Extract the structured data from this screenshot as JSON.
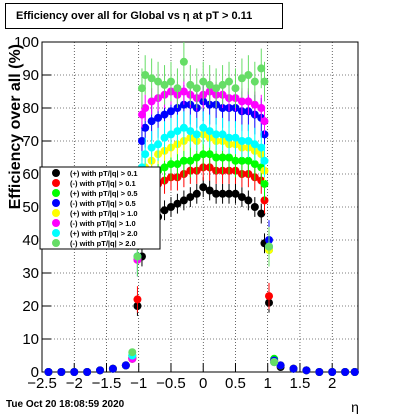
{
  "title": "Efficiency over all for Global vs   η at pT > 0.11",
  "timestamp": "Tue Oct 20 18:08:59 2020",
  "chart_data": {
    "type": "scatter",
    "title": "Efficiency over all for Global vs   η at pT > 0.11",
    "xlabel": "η",
    "ylabel": "Efficiency over all (%)",
    "xlim": [
      -2.5,
      2.4
    ],
    "ylim": [
      0,
      100
    ],
    "x_ticks": [
      -2.5,
      -2,
      -1.5,
      -1,
      -0.5,
      0,
      0.5,
      1,
      1.5,
      2
    ],
    "x_tick_labels": [
      "−2.5",
      "−2",
      "−1.5",
      "−1",
      "−0.5",
      "0",
      "0.5",
      "1",
      "1.5",
      "2"
    ],
    "y_ticks": [
      0,
      10,
      20,
      30,
      40,
      50,
      60,
      70,
      80,
      90,
      100
    ],
    "y_tick_labels": [
      "0",
      "10",
      "20",
      "30",
      "40",
      "50",
      "60",
      "70",
      "80",
      "90",
      "100"
    ],
    "grid": true,
    "legend_position": "middle-left",
    "series": [
      {
        "name": "(+) with pT/|q| > 0.1",
        "color": "#000000",
        "points": [
          [
            -2.4,
            0
          ],
          [
            -2.2,
            0
          ],
          [
            -2.0,
            0
          ],
          [
            -1.8,
            0
          ],
          [
            -1.6,
            0.5
          ],
          [
            -1.4,
            1
          ],
          [
            -1.2,
            2
          ],
          [
            -1.1,
            4
          ],
          [
            -1.02,
            20
          ],
          [
            -0.95,
            35
          ],
          [
            -0.9,
            42
          ],
          [
            -0.8,
            45
          ],
          [
            -0.7,
            47
          ],
          [
            -0.6,
            49
          ],
          [
            -0.5,
            50
          ],
          [
            -0.4,
            51
          ],
          [
            -0.3,
            52
          ],
          [
            -0.2,
            53
          ],
          [
            -0.1,
            54
          ],
          [
            0.0,
            56
          ],
          [
            0.1,
            55
          ],
          [
            0.2,
            54
          ],
          [
            0.3,
            54
          ],
          [
            0.4,
            54
          ],
          [
            0.5,
            54
          ],
          [
            0.6,
            53
          ],
          [
            0.7,
            52
          ],
          [
            0.8,
            50
          ],
          [
            0.9,
            48
          ],
          [
            0.95,
            39
          ],
          [
            1.02,
            21
          ],
          [
            1.1,
            3
          ],
          [
            1.2,
            1.5
          ],
          [
            1.4,
            1
          ],
          [
            1.6,
            0.5
          ],
          [
            1.8,
            0
          ],
          [
            2.0,
            0
          ],
          [
            2.2,
            0
          ],
          [
            2.35,
            0
          ]
        ]
      },
      {
        "name": "(-) with pT/|q| > 0.1",
        "color": "#ff0000",
        "points": [
          [
            -2.4,
            0
          ],
          [
            -2.2,
            0
          ],
          [
            -2.0,
            0
          ],
          [
            -1.8,
            0
          ],
          [
            -1.6,
            0.5
          ],
          [
            -1.4,
            1
          ],
          [
            -1.2,
            2
          ],
          [
            -1.1,
            4.5
          ],
          [
            -1.02,
            22
          ],
          [
            -0.95,
            48
          ],
          [
            -0.9,
            55
          ],
          [
            -0.8,
            56
          ],
          [
            -0.7,
            57
          ],
          [
            -0.6,
            58
          ],
          [
            -0.5,
            59
          ],
          [
            -0.4,
            59
          ],
          [
            -0.3,
            60
          ],
          [
            -0.2,
            61
          ],
          [
            -0.1,
            61
          ],
          [
            0.0,
            62
          ],
          [
            0.1,
            62
          ],
          [
            0.2,
            61
          ],
          [
            0.3,
            61
          ],
          [
            0.4,
            61
          ],
          [
            0.5,
            61
          ],
          [
            0.6,
            60
          ],
          [
            0.7,
            60
          ],
          [
            0.8,
            59
          ],
          [
            0.9,
            58
          ],
          [
            0.95,
            52
          ],
          [
            1.02,
            23
          ],
          [
            1.1,
            3.5
          ],
          [
            1.2,
            2
          ],
          [
            1.4,
            1
          ],
          [
            1.6,
            0.5
          ],
          [
            1.8,
            0
          ],
          [
            2.0,
            0
          ],
          [
            2.2,
            0
          ],
          [
            2.35,
            0
          ]
        ]
      },
      {
        "name": "(+) with pT/|q| > 0.5",
        "color": "#00ff00",
        "points": [
          [
            -2.4,
            0
          ],
          [
            -2.2,
            0
          ],
          [
            -2.0,
            0
          ],
          [
            -1.8,
            0
          ],
          [
            -1.6,
            0.5
          ],
          [
            -1.4,
            1
          ],
          [
            -1.2,
            2
          ],
          [
            -1.1,
            5
          ],
          [
            -1.02,
            34
          ],
          [
            -0.95,
            52
          ],
          [
            -0.9,
            58
          ],
          [
            -0.8,
            60
          ],
          [
            -0.7,
            61
          ],
          [
            -0.6,
            62
          ],
          [
            -0.5,
            63
          ],
          [
            -0.4,
            63
          ],
          [
            -0.3,
            64
          ],
          [
            -0.2,
            64
          ],
          [
            -0.1,
            65
          ],
          [
            0.0,
            66
          ],
          [
            0.1,
            66
          ],
          [
            0.2,
            65
          ],
          [
            0.3,
            65
          ],
          [
            0.4,
            65
          ],
          [
            0.5,
            64
          ],
          [
            0.6,
            64
          ],
          [
            0.7,
            64
          ],
          [
            0.8,
            63
          ],
          [
            0.9,
            62
          ],
          [
            0.95,
            57
          ],
          [
            1.02,
            37
          ],
          [
            1.1,
            4
          ],
          [
            1.2,
            2
          ],
          [
            1.4,
            1
          ],
          [
            1.6,
            0.5
          ],
          [
            1.8,
            0
          ],
          [
            2.0,
            0
          ],
          [
            2.2,
            0
          ],
          [
            2.35,
            0
          ]
        ]
      },
      {
        "name": "(-) with pT/|q| > 0.5",
        "color": "#0000ff",
        "points": [
          [
            -2.4,
            0
          ],
          [
            -2.2,
            0
          ],
          [
            -2.0,
            0
          ],
          [
            -1.8,
            0
          ],
          [
            -1.6,
            0.5
          ],
          [
            -1.4,
            1
          ],
          [
            -1.2,
            2
          ],
          [
            -1.1,
            4
          ],
          [
            -1.02,
            35
          ],
          [
            -0.95,
            70
          ],
          [
            -0.9,
            74
          ],
          [
            -0.8,
            76
          ],
          [
            -0.7,
            77
          ],
          [
            -0.6,
            78
          ],
          [
            -0.5,
            79
          ],
          [
            -0.4,
            80
          ],
          [
            -0.3,
            81
          ],
          [
            -0.2,
            81
          ],
          [
            -0.1,
            80
          ],
          [
            0.0,
            82
          ],
          [
            0.1,
            81
          ],
          [
            0.2,
            81
          ],
          [
            0.3,
            80
          ],
          [
            0.4,
            80
          ],
          [
            0.5,
            80
          ],
          [
            0.6,
            79
          ],
          [
            0.7,
            79
          ],
          [
            0.8,
            78
          ],
          [
            0.9,
            77
          ],
          [
            0.95,
            72
          ],
          [
            1.02,
            40
          ],
          [
            1.1,
            3.5
          ],
          [
            1.2,
            2
          ],
          [
            1.4,
            1
          ],
          [
            1.6,
            0.5
          ],
          [
            1.8,
            0
          ],
          [
            2.0,
            0
          ],
          [
            2.2,
            0
          ],
          [
            2.35,
            0
          ]
        ]
      },
      {
        "name": "(+) with pT/|q| > 1.0",
        "color": "#ffff00",
        "points": [
          [
            -1.1,
            4
          ],
          [
            -1.02,
            34
          ],
          [
            -0.95,
            57
          ],
          [
            -0.9,
            62
          ],
          [
            -0.8,
            64
          ],
          [
            -0.7,
            66
          ],
          [
            -0.6,
            67
          ],
          [
            -0.5,
            68
          ],
          [
            -0.4,
            69
          ],
          [
            -0.3,
            70
          ],
          [
            -0.2,
            71
          ],
          [
            -0.1,
            70
          ],
          [
            0.0,
            72
          ],
          [
            0.1,
            71
          ],
          [
            0.2,
            70
          ],
          [
            0.3,
            70
          ],
          [
            0.4,
            69
          ],
          [
            0.5,
            69
          ],
          [
            0.6,
            68
          ],
          [
            0.7,
            68
          ],
          [
            0.8,
            67
          ],
          [
            0.9,
            66
          ],
          [
            0.95,
            61
          ],
          [
            1.02,
            37
          ],
          [
            1.1,
            3
          ]
        ]
      },
      {
        "name": "(-) with pT/|q| > 1.0",
        "color": "#ff00ff",
        "points": [
          [
            -1.1,
            4
          ],
          [
            -1.02,
            34
          ],
          [
            -0.95,
            78
          ],
          [
            -0.9,
            80
          ],
          [
            -0.8,
            82
          ],
          [
            -0.7,
            83
          ],
          [
            -0.6,
            84
          ],
          [
            -0.5,
            85
          ],
          [
            -0.4,
            84
          ],
          [
            -0.3,
            85
          ],
          [
            -0.2,
            84
          ],
          [
            -0.1,
            83
          ],
          [
            0.0,
            84
          ],
          [
            0.1,
            85
          ],
          [
            0.2,
            84
          ],
          [
            0.3,
            84
          ],
          [
            0.4,
            83
          ],
          [
            0.5,
            83
          ],
          [
            0.6,
            82
          ],
          [
            0.7,
            82
          ],
          [
            0.8,
            81
          ],
          [
            0.9,
            80
          ],
          [
            0.95,
            76
          ],
          [
            1.02,
            38
          ],
          [
            1.1,
            3
          ]
        ]
      },
      {
        "name": "(+) with pT/|q| > 2.0",
        "color": "#00ffff",
        "points": [
          [
            -1.1,
            5
          ],
          [
            -1.02,
            35
          ],
          [
            -0.95,
            62
          ],
          [
            -0.9,
            66
          ],
          [
            -0.8,
            68
          ],
          [
            -0.7,
            69
          ],
          [
            -0.6,
            71
          ],
          [
            -0.5,
            72
          ],
          [
            -0.4,
            73
          ],
          [
            -0.3,
            74
          ],
          [
            -0.2,
            73
          ],
          [
            -0.1,
            72
          ],
          [
            0.0,
            74
          ],
          [
            0.1,
            73
          ],
          [
            0.2,
            72
          ],
          [
            0.3,
            72
          ],
          [
            0.4,
            71
          ],
          [
            0.5,
            71
          ],
          [
            0.6,
            70
          ],
          [
            0.7,
            70
          ],
          [
            0.8,
            69
          ],
          [
            0.9,
            68
          ],
          [
            0.95,
            64
          ],
          [
            1.02,
            38
          ],
          [
            1.1,
            3
          ]
        ]
      },
      {
        "name": "(-) with pT/|q| > 2.0",
        "color": "#66dd66",
        "points": [
          [
            -1.1,
            6
          ],
          [
            -1.02,
            35
          ],
          [
            -0.95,
            86
          ],
          [
            -0.9,
            90
          ],
          [
            -0.8,
            89
          ],
          [
            -0.7,
            88
          ],
          [
            -0.6,
            87
          ],
          [
            -0.5,
            88
          ],
          [
            -0.4,
            86
          ],
          [
            -0.3,
            94
          ],
          [
            -0.2,
            87
          ],
          [
            -0.1,
            86
          ],
          [
            0.0,
            88
          ],
          [
            0.1,
            87
          ],
          [
            0.2,
            86
          ],
          [
            0.3,
            87
          ],
          [
            0.4,
            88
          ],
          [
            0.5,
            86
          ],
          [
            0.6,
            89
          ],
          [
            0.7,
            90
          ],
          [
            0.8,
            88
          ],
          [
            0.9,
            92
          ],
          [
            0.95,
            88
          ],
          [
            1.02,
            38
          ],
          [
            1.1,
            3
          ]
        ]
      }
    ]
  }
}
